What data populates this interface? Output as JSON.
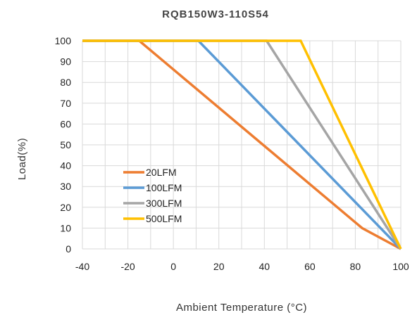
{
  "chart_data": {
    "type": "line",
    "title": "RQB150W3-110S54",
    "xlabel": "Ambient Temperature (°C)",
    "ylabel": "Load(%)",
    "xlim": [
      -40,
      100
    ],
    "ylim": [
      0,
      100
    ],
    "x_ticks": [
      "-40",
      "-20",
      "0",
      "20",
      "40",
      "60",
      "80",
      "100"
    ],
    "y_ticks": [
      "0",
      "10",
      "20",
      "30",
      "40",
      "50",
      "60",
      "70",
      "80",
      "90",
      "100"
    ],
    "grid": true,
    "legend_position": "lower-left",
    "series": [
      {
        "name": "20LFM",
        "color": "#ED7D31",
        "points": [
          [
            -40,
            100
          ],
          [
            -15,
            100
          ],
          [
            83,
            10
          ],
          [
            100,
            0
          ]
        ]
      },
      {
        "name": "100LFM",
        "color": "#5B9BD5",
        "points": [
          [
            -40,
            100
          ],
          [
            11,
            100
          ],
          [
            100,
            0
          ]
        ]
      },
      {
        "name": "300LFM",
        "color": "#A5A5A5",
        "points": [
          [
            -40,
            100
          ],
          [
            41,
            100
          ],
          [
            100,
            0
          ]
        ]
      },
      {
        "name": "500LFM",
        "color": "#FFC000",
        "points": [
          [
            -40,
            100
          ],
          [
            56,
            100
          ],
          [
            100,
            0
          ]
        ]
      }
    ]
  }
}
